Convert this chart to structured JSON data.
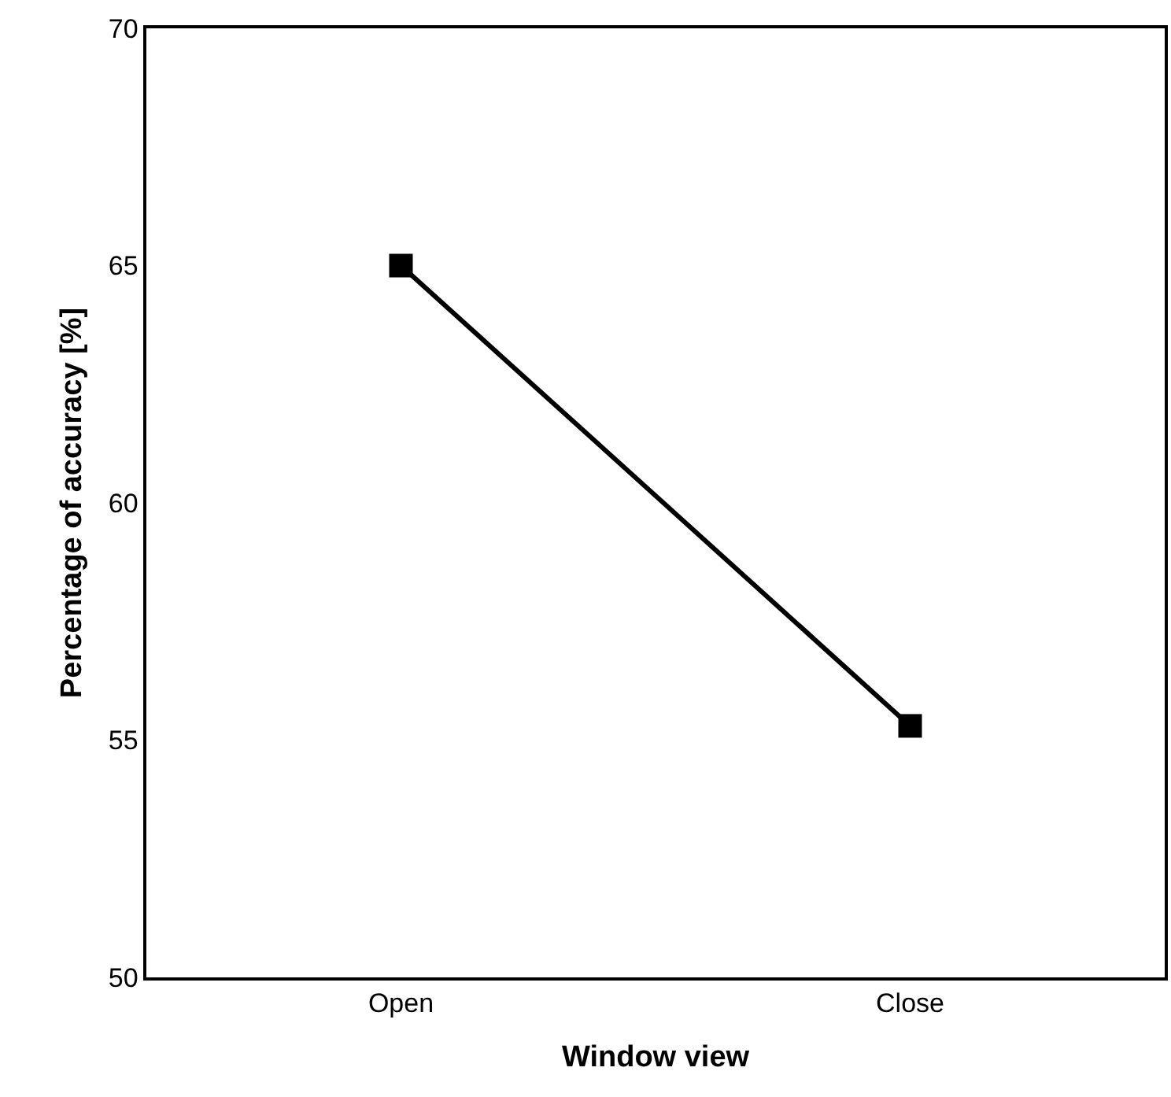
{
  "chart_data": {
    "type": "line",
    "xlabel": "Window view",
    "ylabel": "Percentage of accuracy [%]",
    "categories": [
      "Open",
      "Close"
    ],
    "series": [
      {
        "color": "#000000",
        "values": [
          65.0,
          55.3
        ]
      }
    ],
    "ylim": [
      50,
      70
    ],
    "yticks": [
      50,
      55,
      60,
      65,
      70
    ],
    "marker": "square",
    "line_style": "solid"
  }
}
